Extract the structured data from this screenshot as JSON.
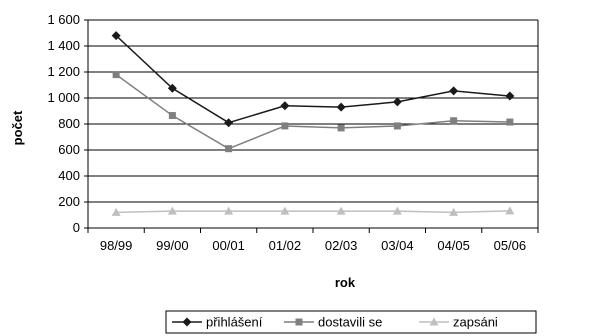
{
  "chart_data": {
    "type": "line",
    "categories": [
      "98/99",
      "99/00",
      "00/01",
      "01/02",
      "02/03",
      "03/04",
      "04/05",
      "05/06"
    ],
    "series": [
      {
        "name": "přihlášení",
        "color": "#1a1a1a",
        "marker": "diamond",
        "values": [
          1480,
          1075,
          810,
          940,
          930,
          970,
          1055,
          1015
        ]
      },
      {
        "name": "dostavili se",
        "color": "#7f7f7f",
        "marker": "square",
        "values": [
          1180,
          865,
          610,
          785,
          770,
          785,
          825,
          815
        ]
      },
      {
        "name": "zapsáni",
        "color": "#bfbfbf",
        "marker": "triangle",
        "values": [
          120,
          130,
          130,
          130,
          130,
          130,
          120,
          132
        ]
      }
    ],
    "xlabel": "rok",
    "ylabel": "počet",
    "ylim": [
      0,
      1600
    ],
    "yticks": [
      0,
      200,
      400,
      600,
      800,
      1000,
      1200,
      1400,
      1600
    ],
    "ytick_labels": [
      "0",
      "200",
      "400",
      "600",
      "800",
      "1 000",
      "1 200",
      "1 400",
      "1 600"
    ],
    "grid": "horizontal",
    "legend_position": "bottom"
  }
}
